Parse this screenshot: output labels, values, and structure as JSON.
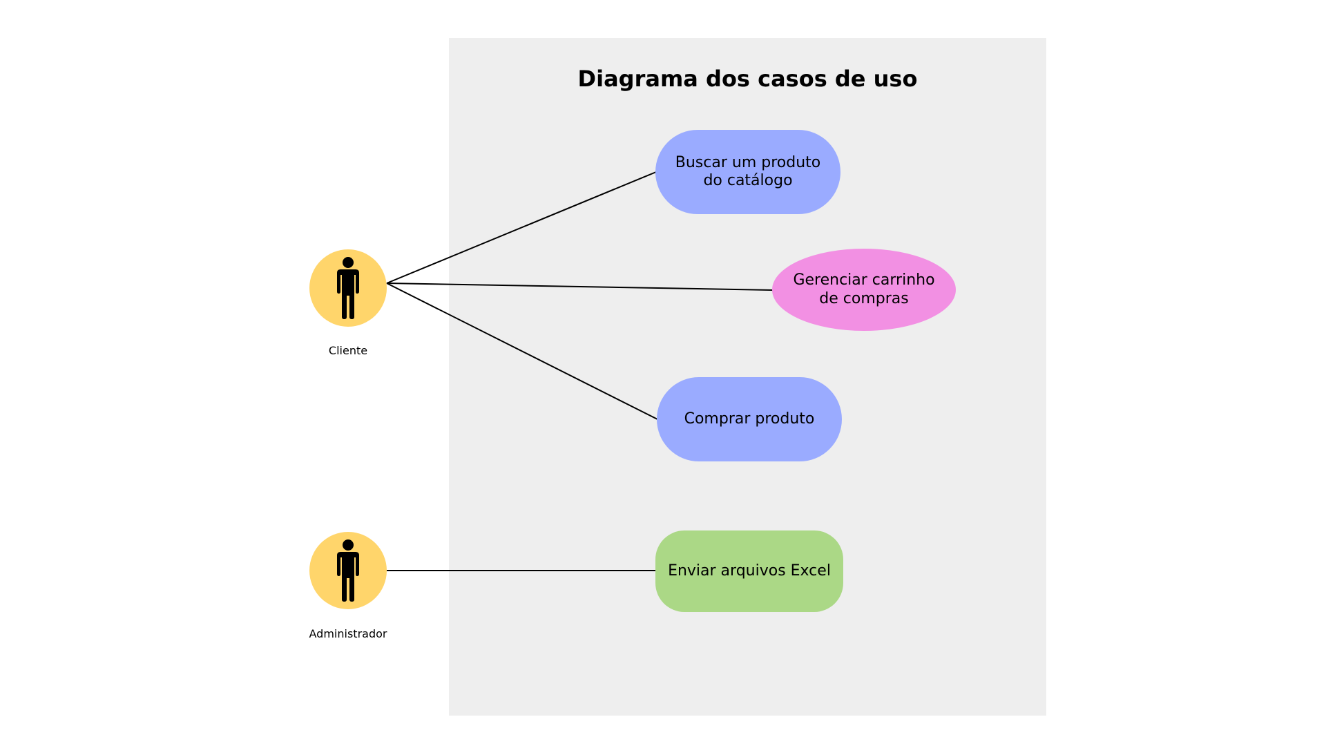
{
  "diagram": {
    "title": "Diagrama dos casos de uso"
  },
  "actors": [
    {
      "id": "cliente",
      "label": "Cliente",
      "icon": "person-icon"
    },
    {
      "id": "administrador",
      "label": "Administrador",
      "icon": "person-icon"
    }
  ],
  "use_cases": [
    {
      "id": "buscar",
      "label": "Buscar um produto do catálogo",
      "color": "#9aabff"
    },
    {
      "id": "gerenciar",
      "label": "Gerenciar carrinho de compras",
      "color": "#f290e3"
    },
    {
      "id": "comprar",
      "label": "Comprar produto",
      "color": "#9aabff"
    },
    {
      "id": "enviar",
      "label": "Enviar arquivos Excel",
      "color": "#abd886"
    }
  ],
  "associations": [
    {
      "from": "cliente",
      "to": "buscar"
    },
    {
      "from": "cliente",
      "to": "gerenciar"
    },
    {
      "from": "cliente",
      "to": "comprar"
    },
    {
      "from": "administrador",
      "to": "enviar"
    }
  ],
  "colors": {
    "actor_fill": "#ffd56b",
    "boundary_fill": "#eeeeee",
    "line": "#000000"
  }
}
